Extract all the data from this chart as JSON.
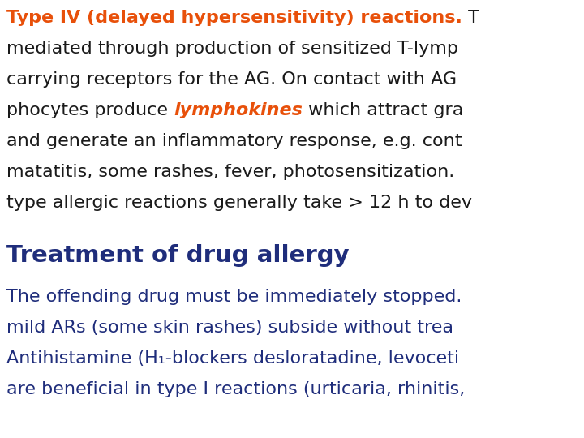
{
  "bg_color": "#ffffff",
  "orange_color": "#E8500A",
  "dark_blue_color": "#1F2D7B",
  "black_color": "#1a1a1a",
  "line1_bold_orange": "Type IV (delayed hypersensitivity) reactions.",
  "line1_black": " T",
  "line2": "mediated through production of sensitized T-lymp",
  "line3": "carrying receptors for the AG. On contact with AG",
  "line4_black1": "phocytes produce ",
  "line4_italic_orange": "lymphokines",
  "line4_black2": " which attract gra",
  "line5": "and generate an inflammatory response, e.g. cont",
  "line6": "matatitis, some rashes, fever, photosensitization.",
  "line7": "type allergic reactions generally take > 12 h to dev",
  "section_title": "Treatment of drug allergy",
  "body_line1": "The offending drug must be immediately stopped.",
  "body_line2": "mild ARs (some skin rashes) subside without trea",
  "body_line3": "Antihistamine (H₁-blockers desloratadine, levoceti",
  "body_line4": "are beneficial in type I reactions (urticaria, rhinitis,",
  "main_fontsize": 16,
  "title_fontsize": 21,
  "body_fontsize": 16
}
